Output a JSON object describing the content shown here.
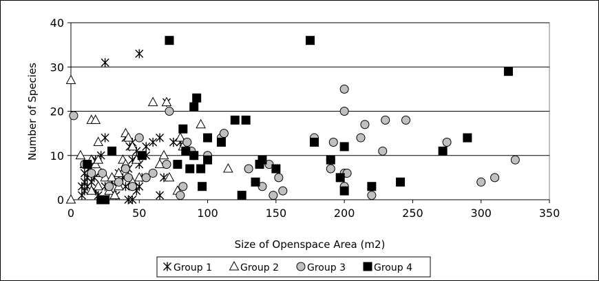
{
  "chart_data": {
    "type": "scatter",
    "xlabel": "Size of Openspace Area (m2)",
    "ylabel": "Number of Species",
    "xlim": [
      0,
      350
    ],
    "ylim": [
      0,
      40
    ],
    "xticks": [
      0,
      50,
      100,
      150,
      200,
      250,
      300,
      350
    ],
    "yticks": [
      0,
      10,
      20,
      30,
      40
    ],
    "grid": "horizontal",
    "legend_position": "bottom",
    "series": [
      {
        "name": "Group 1",
        "marker": "asterisk",
        "color": "#000000",
        "points": [
          [
            25,
            31
          ],
          [
            50,
            33
          ],
          [
            70,
            22
          ],
          [
            65,
            14
          ],
          [
            60,
            13
          ],
          [
            55,
            12
          ],
          [
            45,
            13
          ],
          [
            43,
            12
          ],
          [
            40,
            14
          ],
          [
            48,
            11
          ],
          [
            25,
            14
          ],
          [
            22,
            10
          ],
          [
            18,
            9
          ],
          [
            15,
            8
          ],
          [
            13,
            7
          ],
          [
            10,
            6
          ],
          [
            12,
            5
          ],
          [
            10,
            4
          ],
          [
            8,
            3
          ],
          [
            10,
            2
          ],
          [
            8,
            1
          ],
          [
            17,
            5
          ],
          [
            15,
            4
          ],
          [
            12,
            3
          ],
          [
            18,
            2
          ],
          [
            20,
            1
          ],
          [
            25,
            3
          ],
          [
            28,
            2
          ],
          [
            30,
            4
          ],
          [
            35,
            6
          ],
          [
            38,
            5
          ],
          [
            40,
            3
          ],
          [
            42,
            7
          ],
          [
            45,
            9
          ],
          [
            50,
            8
          ],
          [
            52,
            5
          ],
          [
            48,
            2
          ],
          [
            45,
            0
          ],
          [
            42,
            0
          ],
          [
            50,
            3
          ],
          [
            65,
            1
          ],
          [
            68,
            5
          ],
          [
            75,
            13
          ],
          [
            80,
            13
          ],
          [
            55,
            10
          ],
          [
            33,
            1
          ]
        ]
      },
      {
        "name": "Group 2",
        "marker": "triangle",
        "color": "#ffffff",
        "points": [
          [
            0,
            27
          ],
          [
            0,
            0
          ],
          [
            7,
            10
          ],
          [
            10,
            8
          ],
          [
            15,
            18
          ],
          [
            18,
            18
          ],
          [
            15,
            9
          ],
          [
            18,
            8
          ],
          [
            20,
            13
          ],
          [
            20,
            9
          ],
          [
            22,
            6
          ],
          [
            25,
            5
          ],
          [
            28,
            2
          ],
          [
            30,
            5
          ],
          [
            32,
            1
          ],
          [
            35,
            3
          ],
          [
            38,
            9
          ],
          [
            40,
            15
          ],
          [
            42,
            14
          ],
          [
            45,
            12
          ],
          [
            48,
            9
          ],
          [
            50,
            5
          ],
          [
            40,
            8
          ],
          [
            45,
            4
          ],
          [
            60,
            22
          ],
          [
            70,
            22
          ],
          [
            65,
            8
          ],
          [
            68,
            10
          ],
          [
            72,
            5
          ],
          [
            78,
            2
          ],
          [
            80,
            14
          ],
          [
            82,
            12
          ],
          [
            95,
            17
          ],
          [
            115,
            7
          ],
          [
            15,
            2
          ],
          [
            20,
            3
          ],
          [
            35,
            6
          ]
        ]
      },
      {
        "name": "Group 3",
        "marker": "circle",
        "color": "#c0c0c0",
        "points": [
          [
            2,
            19
          ],
          [
            10,
            8
          ],
          [
            15,
            6
          ],
          [
            23,
            6
          ],
          [
            25,
            0
          ],
          [
            28,
            3
          ],
          [
            40,
            7
          ],
          [
            42,
            5
          ],
          [
            45,
            3
          ],
          [
            50,
            14
          ],
          [
            55,
            5
          ],
          [
            70,
            8
          ],
          [
            72,
            20
          ],
          [
            80,
            1
          ],
          [
            82,
            3
          ],
          [
            85,
            13
          ],
          [
            88,
            11
          ],
          [
            90,
            10
          ],
          [
            100,
            10
          ],
          [
            110,
            14
          ],
          [
            112,
            15
          ],
          [
            140,
            3
          ],
          [
            145,
            8
          ],
          [
            148,
            1
          ],
          [
            152,
            5
          ],
          [
            155,
            2
          ],
          [
            178,
            14
          ],
          [
            190,
            7
          ],
          [
            192,
            13
          ],
          [
            200,
            25
          ],
          [
            200,
            20
          ],
          [
            200,
            3
          ],
          [
            200,
            6
          ],
          [
            202,
            6
          ],
          [
            212,
            14
          ],
          [
            215,
            17
          ],
          [
            220,
            1
          ],
          [
            228,
            11
          ],
          [
            230,
            18
          ],
          [
            245,
            18
          ],
          [
            275,
            13
          ],
          [
            300,
            4
          ],
          [
            310,
            5
          ],
          [
            325,
            9
          ],
          [
            35,
            4
          ],
          [
            60,
            6
          ],
          [
            130,
            7
          ],
          [
            190,
            9
          ]
        ]
      },
      {
        "name": "Group 4",
        "marker": "square",
        "color": "#000000",
        "points": [
          [
            12,
            8
          ],
          [
            22,
            0
          ],
          [
            25,
            0
          ],
          [
            30,
            11
          ],
          [
            52,
            10
          ],
          [
            72,
            36
          ],
          [
            78,
            8
          ],
          [
            82,
            16
          ],
          [
            84,
            11
          ],
          [
            87,
            7
          ],
          [
            90,
            21
          ],
          [
            92,
            23
          ],
          [
            90,
            10
          ],
          [
            95,
            7
          ],
          [
            96,
            3
          ],
          [
            100,
            14
          ],
          [
            100,
            9
          ],
          [
            110,
            13
          ],
          [
            120,
            18
          ],
          [
            125,
            1
          ],
          [
            128,
            18
          ],
          [
            135,
            4
          ],
          [
            138,
            8
          ],
          [
            140,
            9
          ],
          [
            150,
            7
          ],
          [
            175,
            36
          ],
          [
            178,
            13
          ],
          [
            190,
            9
          ],
          [
            197,
            5
          ],
          [
            200,
            2
          ],
          [
            200,
            12
          ],
          [
            220,
            3
          ],
          [
            241,
            4
          ],
          [
            272,
            11
          ],
          [
            290,
            14
          ],
          [
            320,
            29
          ]
        ]
      }
    ]
  }
}
